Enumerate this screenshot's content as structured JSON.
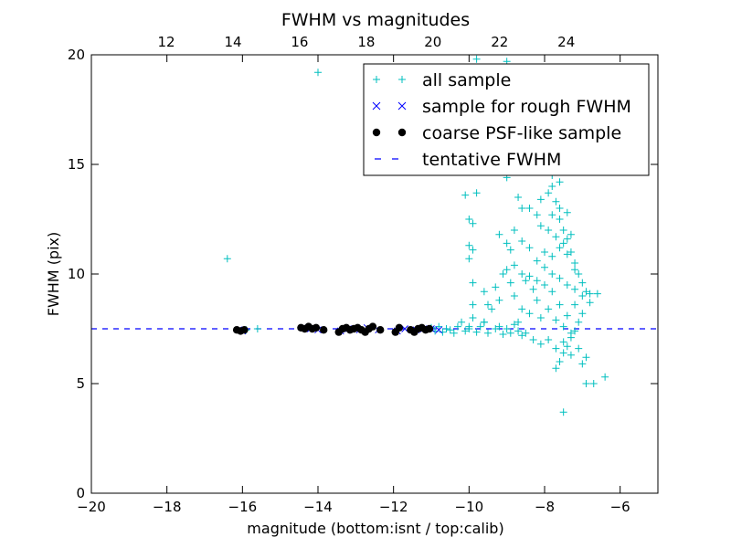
{
  "chart_data": {
    "type": "scatter",
    "title": "FWHM vs magnitudes",
    "xlabel": "magnitude (bottom:isnt / top:calib)",
    "ylabel": "FWHM (pix)",
    "xlim": [
      -20,
      -5
    ],
    "ylim": [
      0,
      20
    ],
    "x_ticks": [
      "−20",
      "−18",
      "−16",
      "−14",
      "−12",
      "−10",
      "−8",
      "−6"
    ],
    "x_tick_values": [
      -20,
      -18,
      -16,
      -14,
      -12,
      -10,
      -8,
      -6
    ],
    "y_ticks": [
      "0",
      "5",
      "10",
      "15",
      "20"
    ],
    "y_tick_values": [
      0,
      5,
      10,
      15,
      20
    ],
    "top_axis": {
      "ticks": [
        "12",
        "14",
        "16",
        "18",
        "20",
        "22",
        "24"
      ],
      "tick_values": [
        12,
        14,
        16,
        18,
        20,
        22,
        24
      ],
      "xlim": [
        9.75,
        26.75
      ]
    },
    "legend_position": "upper right",
    "tentative_fwhm": 7.5,
    "series": [
      {
        "name": "all sample",
        "marker": "+",
        "color": "#00bfbf",
        "points": [
          [
            -16.4,
            10.7
          ],
          [
            -14.0,
            19.2
          ],
          [
            -15.6,
            7.5
          ],
          [
            -15.9,
            7.45
          ],
          [
            -11.2,
            7.5
          ],
          [
            -11.0,
            7.55
          ],
          [
            -10.9,
            7.4
          ],
          [
            -10.8,
            7.6
          ],
          [
            -10.7,
            7.35
          ],
          [
            -10.6,
            7.5
          ],
          [
            -10.5,
            7.45
          ],
          [
            -10.4,
            7.3
          ],
          [
            -10.3,
            7.6
          ],
          [
            -10.2,
            7.8
          ],
          [
            -10.1,
            7.4
          ],
          [
            -10.0,
            7.5
          ],
          [
            -9.9,
            8.0
          ],
          [
            -9.8,
            7.35
          ],
          [
            -9.7,
            7.6
          ],
          [
            -9.6,
            7.8
          ],
          [
            -9.5,
            7.3
          ],
          [
            -9.4,
            8.4
          ],
          [
            -9.3,
            7.5
          ],
          [
            -9.2,
            7.6
          ],
          [
            -9.1,
            7.25
          ],
          [
            -9.0,
            7.5
          ],
          [
            -8.9,
            7.3
          ],
          [
            -8.8,
            7.7
          ],
          [
            -8.7,
            7.4
          ],
          [
            -8.6,
            7.2
          ],
          [
            -10.1,
            13.6
          ],
          [
            -9.8,
            13.7
          ],
          [
            -10.0,
            12.5
          ],
          [
            -9.9,
            12.3
          ],
          [
            -10.0,
            11.3
          ],
          [
            -9.9,
            11.1
          ],
          [
            -10.0,
            10.7
          ],
          [
            -9.9,
            9.6
          ],
          [
            -9.9,
            8.6
          ],
          [
            -10.0,
            7.6
          ],
          [
            -9.6,
            7.8
          ],
          [
            -9.0,
            14.4
          ],
          [
            -9.8,
            19.8
          ],
          [
            -9.0,
            19.7
          ],
          [
            -8.9,
            14.8
          ],
          [
            -8.7,
            13.5
          ],
          [
            -8.6,
            13.0
          ],
          [
            -8.4,
            13.0
          ],
          [
            -8.2,
            12.7
          ],
          [
            -8.1,
            13.4
          ],
          [
            -7.9,
            13.7
          ],
          [
            -7.7,
            13.3
          ],
          [
            -8.0,
            14.8
          ],
          [
            -7.9,
            15.0
          ],
          [
            -7.8,
            14.0
          ],
          [
            -8.0,
            16.5
          ],
          [
            -7.7,
            17.0
          ],
          [
            -7.6,
            16.8
          ],
          [
            -7.9,
            15.5
          ],
          [
            -7.8,
            12.7
          ],
          [
            -7.6,
            12.5
          ],
          [
            -7.5,
            12.0
          ],
          [
            -7.4,
            11.6
          ],
          [
            -7.3,
            11.0
          ],
          [
            -7.2,
            10.5
          ],
          [
            -7.1,
            10.0
          ],
          [
            -7.0,
            9.6
          ],
          [
            -6.9,
            9.2
          ],
          [
            -6.8,
            8.7
          ],
          [
            -7.0,
            8.2
          ],
          [
            -7.1,
            7.8
          ],
          [
            -7.2,
            7.4
          ],
          [
            -7.3,
            7.1
          ],
          [
            -7.4,
            6.7
          ],
          [
            -7.5,
            6.4
          ],
          [
            -7.6,
            6.0
          ],
          [
            -7.7,
            5.7
          ],
          [
            -7.0,
            5.9
          ],
          [
            -6.9,
            5.0
          ],
          [
            -6.7,
            5.0
          ],
          [
            -6.4,
            5.3
          ],
          [
            -7.5,
            3.7
          ],
          [
            -6.8,
            9.1
          ],
          [
            -6.6,
            9.1
          ],
          [
            -8.8,
            12.0
          ],
          [
            -8.6,
            11.5
          ],
          [
            -8.4,
            11.2
          ],
          [
            -8.2,
            10.6
          ],
          [
            -8.0,
            11.0
          ],
          [
            -7.8,
            10.8
          ],
          [
            -7.6,
            11.2
          ],
          [
            -7.4,
            10.9
          ],
          [
            -7.2,
            10.2
          ],
          [
            -8.9,
            11.1
          ],
          [
            -9.0,
            10.2
          ],
          [
            -8.9,
            9.6
          ],
          [
            -8.8,
            9.0
          ],
          [
            -8.6,
            8.4
          ],
          [
            -8.4,
            8.2
          ],
          [
            -8.2,
            8.8
          ],
          [
            -8.0,
            9.5
          ],
          [
            -7.8,
            9.2
          ],
          [
            -7.6,
            8.6
          ],
          [
            -7.4,
            8.1
          ],
          [
            -7.2,
            8.6
          ],
          [
            -8.5,
            9.7
          ],
          [
            -8.3,
            9.3
          ],
          [
            -8.1,
            8.0
          ],
          [
            -7.9,
            8.4
          ],
          [
            -7.7,
            7.9
          ],
          [
            -7.5,
            7.6
          ],
          [
            -7.3,
            7.3
          ],
          [
            -8.7,
            7.8
          ],
          [
            -8.5,
            7.3
          ],
          [
            -8.3,
            7.0
          ],
          [
            -8.1,
            6.8
          ],
          [
            -7.9,
            7.0
          ],
          [
            -7.7,
            6.6
          ],
          [
            -7.5,
            6.9
          ],
          [
            -7.3,
            6.3
          ],
          [
            -7.1,
            6.6
          ],
          [
            -6.9,
            6.2
          ],
          [
            -9.2,
            8.8
          ],
          [
            -9.3,
            9.4
          ],
          [
            -9.5,
            8.6
          ],
          [
            -9.6,
            9.2
          ],
          [
            -9.1,
            10.0
          ],
          [
            -9.0,
            11.4
          ],
          [
            -9.2,
            11.8
          ],
          [
            -8.8,
            10.4
          ],
          [
            -8.6,
            10.0
          ],
          [
            -8.4,
            9.9
          ],
          [
            -8.2,
            9.7
          ],
          [
            -8.0,
            10.3
          ],
          [
            -7.8,
            10.0
          ],
          [
            -7.6,
            9.8
          ],
          [
            -7.4,
            9.5
          ],
          [
            -7.2,
            9.3
          ],
          [
            -7.0,
            9.0
          ],
          [
            -8.1,
            12.2
          ],
          [
            -7.9,
            12.0
          ],
          [
            -7.7,
            11.7
          ],
          [
            -7.5,
            11.4
          ],
          [
            -7.3,
            11.8
          ],
          [
            -7.6,
            13.0
          ],
          [
            -7.4,
            12.8
          ],
          [
            -7.8,
            14.5
          ],
          [
            -7.6,
            14.2
          ]
        ]
      },
      {
        "name": "sample for rough FWHM",
        "marker": "x",
        "color": "#0000ff",
        "points": [
          [
            -16.1,
            7.45
          ],
          [
            -16.0,
            7.4
          ],
          [
            -14.4,
            7.55
          ],
          [
            -14.2,
            7.5
          ],
          [
            -14.0,
            7.45
          ],
          [
            -13.4,
            7.4
          ],
          [
            -13.2,
            7.5
          ],
          [
            -12.9,
            7.45
          ],
          [
            -12.7,
            7.55
          ],
          [
            -12.4,
            7.45
          ],
          [
            -11.9,
            7.4
          ],
          [
            -11.7,
            7.5
          ],
          [
            -11.4,
            7.45
          ],
          [
            -11.2,
            7.5
          ],
          [
            -11.0,
            7.5
          ],
          [
            -10.8,
            7.45
          ]
        ]
      },
      {
        "name": "coarse PSF-like sample",
        "marker": "o",
        "color": "#000000",
        "points": [
          [
            -16.15,
            7.45
          ],
          [
            -16.05,
            7.4
          ],
          [
            -15.95,
            7.45
          ],
          [
            -14.45,
            7.55
          ],
          [
            -14.35,
            7.5
          ],
          [
            -14.25,
            7.6
          ],
          [
            -14.15,
            7.5
          ],
          [
            -14.05,
            7.55
          ],
          [
            -13.85,
            7.45
          ],
          [
            -13.45,
            7.35
          ],
          [
            -13.35,
            7.5
          ],
          [
            -13.25,
            7.55
          ],
          [
            -13.15,
            7.45
          ],
          [
            -13.05,
            7.5
          ],
          [
            -12.95,
            7.55
          ],
          [
            -12.85,
            7.45
          ],
          [
            -12.75,
            7.35
          ],
          [
            -12.65,
            7.5
          ],
          [
            -12.55,
            7.6
          ],
          [
            -12.35,
            7.45
          ],
          [
            -11.95,
            7.35
          ],
          [
            -11.85,
            7.55
          ],
          [
            -11.55,
            7.45
          ],
          [
            -11.45,
            7.35
          ],
          [
            -11.35,
            7.5
          ],
          [
            -11.25,
            7.55
          ],
          [
            -11.15,
            7.45
          ],
          [
            -11.05,
            7.5
          ]
        ]
      },
      {
        "name": "tentative FWHM",
        "marker": "--",
        "color": "#0000ff"
      }
    ]
  }
}
